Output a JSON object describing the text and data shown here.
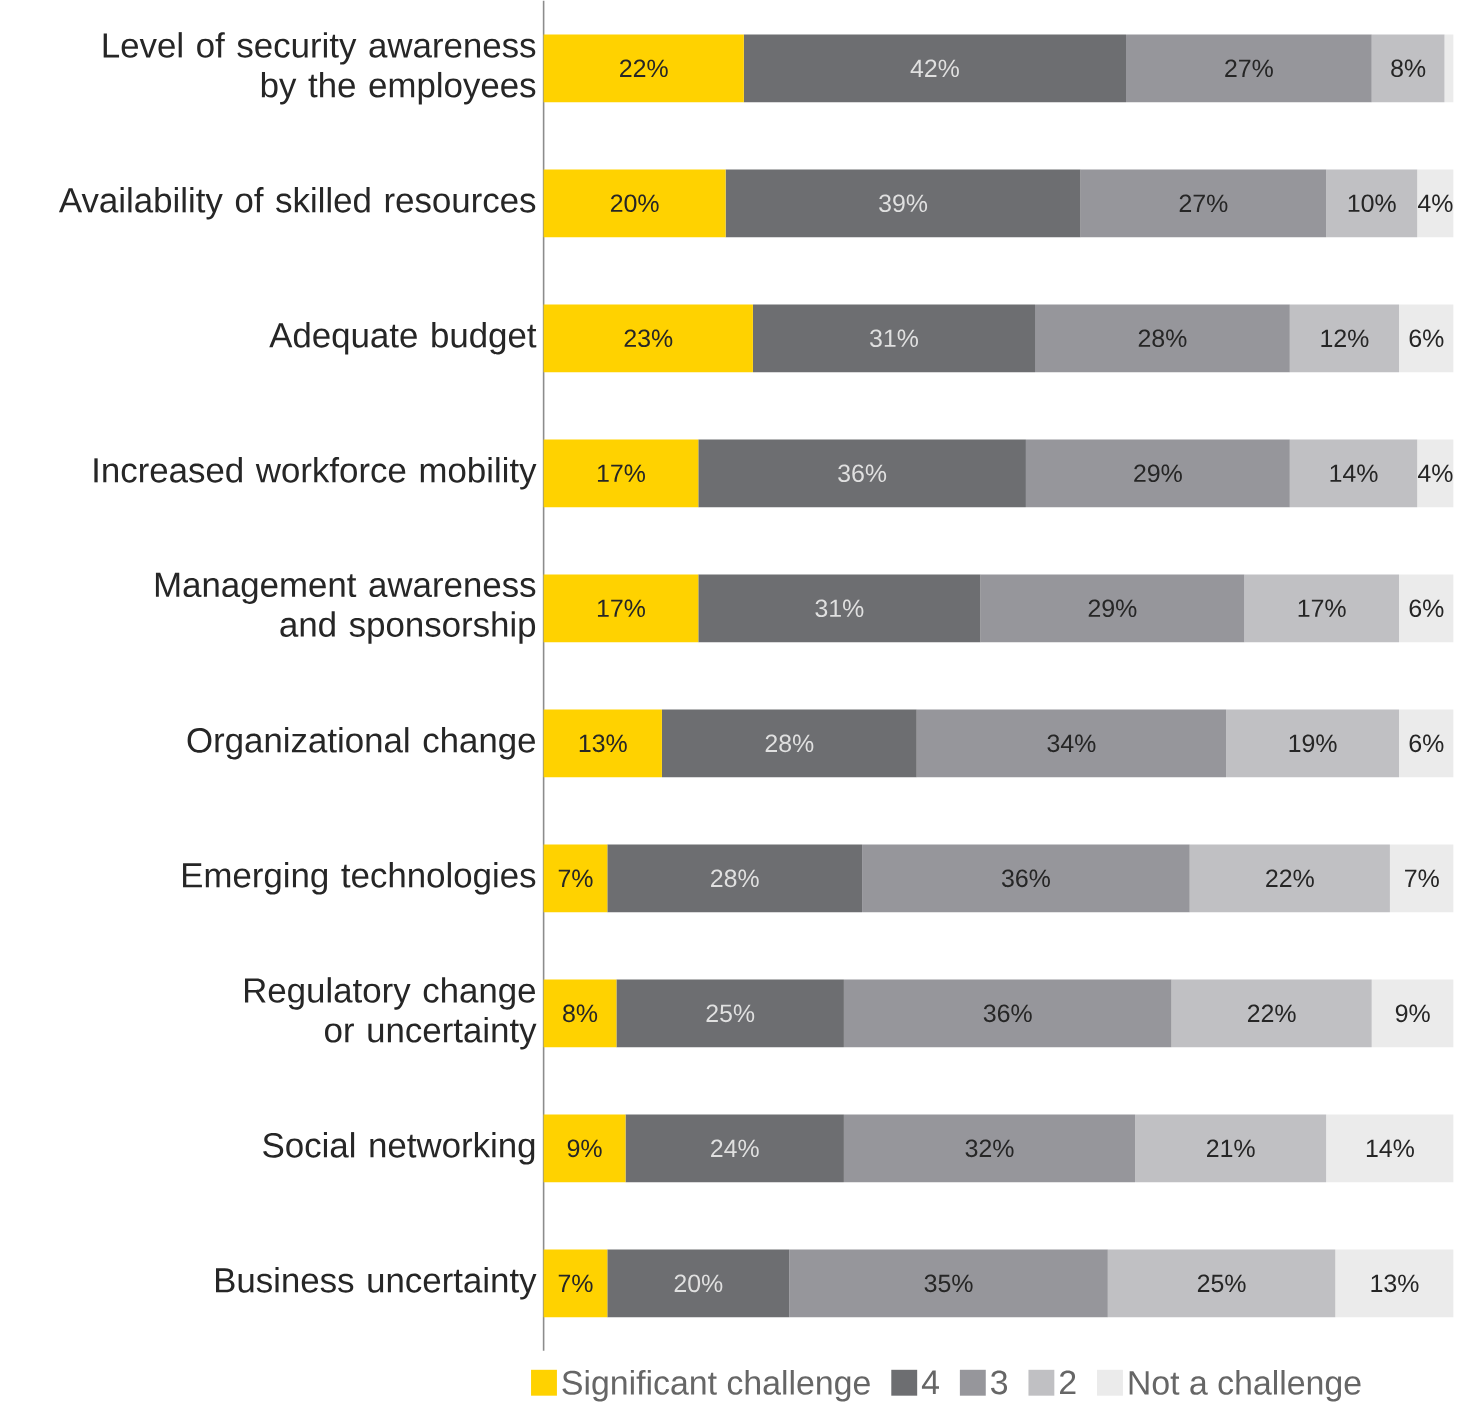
{
  "chart_data": {
    "type": "bar",
    "orientation": "horizontal",
    "stacked": true,
    "categories": [
      "Level of security awareness by the employees",
      "Availability of skilled resources",
      "Adequate budget",
      "Increased workforce mobility",
      "Management awareness and sponsorship",
      "Organizational change",
      "Emerging technologies",
      "Regulatory change or uncertainty",
      "Social networking",
      "Business uncertainty"
    ],
    "tick_labels": "y",
    "legend": "bottom",
    "series": [
      {
        "name": "Significant challenge",
        "color": "#ffd200",
        "values": [
          22,
          20,
          23,
          17,
          17,
          13,
          7,
          8,
          9,
          7
        ],
        "value_labels": [
          "22%",
          "20%",
          "23%",
          "17%",
          "17%",
          "13%",
          "7%",
          "8%",
          "9%",
          "7%"
        ]
      },
      {
        "name": "4",
        "color": "#6d6e71",
        "values": [
          42,
          39,
          31,
          36,
          31,
          28,
          28,
          25,
          24,
          20
        ],
        "value_labels": [
          "42%",
          "39%",
          "31%",
          "36%",
          "31%",
          "28%",
          "28%",
          "25%",
          "24%",
          "20%"
        ]
      },
      {
        "name": "3",
        "color": "#96969b",
        "values": [
          27,
          27,
          28,
          29,
          29,
          34,
          36,
          36,
          32,
          35
        ],
        "value_labels": [
          "27%",
          "27%",
          "28%",
          "29%",
          "29%",
          "34%",
          "36%",
          "36%",
          "32%",
          "35%"
        ]
      },
      {
        "name": "2",
        "color": "#c0c0c3",
        "values": [
          8,
          10,
          12,
          14,
          17,
          19,
          22,
          22,
          21,
          25
        ],
        "value_labels": [
          "8%",
          "10%",
          "12%",
          "14%",
          "17%",
          "19%",
          "22%",
          "22%",
          "21%",
          "25%"
        ]
      },
      {
        "name": "Not a challenge",
        "color": "#ebebeb",
        "values": [
          1,
          4,
          6,
          4,
          6,
          6,
          7,
          9,
          14,
          13
        ],
        "value_labels": [
          null,
          "4%",
          "6%",
          "4%",
          "6%",
          "6%",
          "7%",
          "9%",
          "14%",
          "13%"
        ]
      }
    ]
  }
}
